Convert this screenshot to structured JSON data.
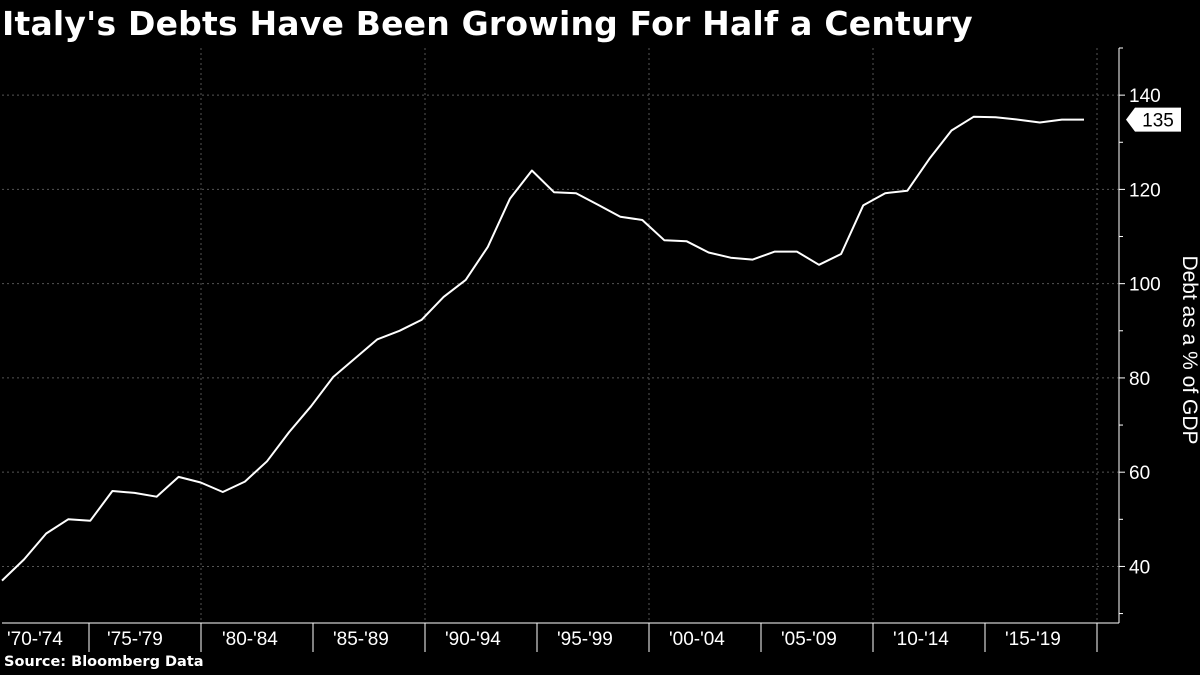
{
  "title": "Italy's Debts Have Been Growing For Half a Century",
  "source": "Source: Bloomberg Data",
  "colors": {
    "background": "#000000",
    "line": "#ffffff",
    "grid": "#555555",
    "flag_bg": "#ffffff"
  },
  "chart_data": {
    "type": "line",
    "title": "Italy's Debts Have Been Growing For Half a Century",
    "xlabel": "",
    "ylabel": "Debt as a % of GDP",
    "x_start_year": 1970,
    "x": [
      1970,
      1971,
      1972,
      1973,
      1974,
      1975,
      1976,
      1977,
      1978,
      1979,
      1980,
      1981,
      1982,
      1983,
      1984,
      1985,
      1986,
      1987,
      1988,
      1989,
      1990,
      1991,
      1992,
      1993,
      1994,
      1995,
      1996,
      1997,
      1998,
      1999,
      2000,
      2001,
      2002,
      2003,
      2004,
      2005,
      2006,
      2007,
      2008,
      2009,
      2010,
      2011,
      2012,
      2013,
      2014,
      2015,
      2016,
      2017,
      2018,
      2019
    ],
    "values": [
      37,
      41.5,
      47,
      50,
      49.7,
      56,
      55.6,
      54.8,
      59,
      57.8,
      55.8,
      58,
      62.3,
      68.5,
      74,
      80.2,
      84.2,
      88.2,
      90,
      92.3,
      97.2,
      100.8,
      107.8,
      118,
      124,
      119.4,
      119.2,
      116.7,
      114.2,
      113.5,
      109.2,
      109,
      106.6,
      105.5,
      105.1,
      106.8,
      106.8,
      104,
      106.3,
      116.6,
      119.2,
      119.7,
      126.5,
      132.5,
      135.4,
      135.3,
      134.8,
      134.2,
      134.8,
      134.8
    ],
    "last_value_label": "135",
    "ylim": [
      28,
      150
    ],
    "yticks": [
      40,
      60,
      80,
      100,
      120,
      140
    ],
    "xtick_labels": [
      "'70-'74",
      "'75-'79",
      "'80-'84",
      "'85-'89",
      "'90-'94",
      "'95-'99",
      "'00-'04",
      "'05-'09",
      "'10-'14",
      "'15-'19"
    ],
    "grid": true,
    "y_axis_position": "right"
  }
}
